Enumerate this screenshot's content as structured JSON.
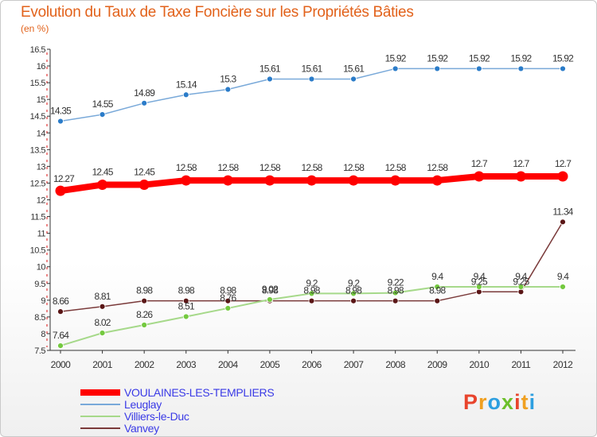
{
  "header": {
    "title": "Evolution du Taux de Taxe Foncière sur les Propriétés Bâties",
    "unit": "(en %)"
  },
  "logo": {
    "letters": [
      {
        "ch": "P",
        "color": "#e8442c"
      },
      {
        "ch": "r",
        "color": "#f0a020"
      },
      {
        "ch": "o",
        "color": "#2d9fe0"
      },
      {
        "ch": "x",
        "color": "#6cbf2a"
      },
      {
        "ch": "i",
        "color": "#e8442c"
      },
      {
        "ch": "t",
        "color": "#f0a020"
      },
      {
        "ch": "i",
        "color": "#2d9fe0"
      }
    ]
  },
  "chart_data": {
    "type": "line",
    "x": [
      2000,
      2001,
      2002,
      2003,
      2004,
      2005,
      2006,
      2007,
      2008,
      2009,
      2010,
      2011,
      2012
    ],
    "ylim": [
      7.5,
      16.5
    ],
    "yticks": [
      "7.5",
      "8",
      "8.5",
      "9",
      "9.5",
      "10",
      "10.5",
      "11",
      "11.5",
      "12",
      "12.5",
      "13",
      "13.5",
      "14",
      "14.5",
      "15",
      "15.5",
      "16",
      "16.5"
    ],
    "grid": false,
    "legend_position": "bottom-left",
    "series": [
      {
        "name": "VOULAINES-LES-TEMPLIERS",
        "color": "#ff0000",
        "marker": "#ff0000",
        "width": 8,
        "values": [
          12.27,
          12.45,
          12.45,
          12.58,
          12.58,
          12.58,
          12.58,
          12.58,
          12.58,
          12.58,
          12.7,
          12.7,
          12.7
        ],
        "labels": [
          "12.27",
          "12.45",
          "12.45",
          "12.58",
          "12.58",
          "12.58",
          "12.58",
          "12.58",
          "12.58",
          "12.58",
          "12.7",
          "12.7",
          "12.7"
        ]
      },
      {
        "name": "Leuglay",
        "color": "#79a9d9",
        "marker": "#2b7cc9",
        "width": 1.5,
        "values": [
          14.35,
          14.55,
          14.89,
          15.14,
          15.3,
          15.61,
          15.61,
          15.61,
          15.92,
          15.92,
          15.92,
          15.92,
          15.92
        ],
        "labels": [
          "14.35",
          "14.55",
          "14.89",
          "15.14",
          "15.3",
          "15.61",
          "15.61",
          "15.61",
          "15.92",
          "15.92",
          "15.92",
          "15.92",
          "15.92"
        ]
      },
      {
        "name": "Villiers-le-Duc",
        "color": "#a6d98a",
        "marker": "#74c93f",
        "width": 2,
        "values": [
          7.64,
          8.02,
          8.26,
          8.51,
          8.76,
          9.02,
          9.2,
          9.2,
          9.22,
          9.4,
          9.4,
          9.4,
          9.4
        ],
        "labels": [
          "7.64",
          "8.02",
          "8.26",
          "8.51",
          "8.76",
          "9.02",
          "9.2",
          "9.2",
          "9.22",
          "9.4",
          "9.4",
          "9.4",
          "9.4"
        ]
      },
      {
        "name": "Vanvey",
        "color": "#7a3a3a",
        "marker": "#5a1616",
        "width": 1.5,
        "values": [
          8.66,
          8.81,
          8.98,
          8.98,
          8.98,
          8.98,
          8.98,
          8.98,
          8.98,
          8.98,
          9.25,
          9.25,
          11.34
        ],
        "labels": [
          "8.66",
          "8.81",
          "8.98",
          "8.98",
          "8.98",
          "8.98",
          "8.98",
          "8.98",
          "8.98",
          "8.98",
          "9.25",
          "9.25",
          "11.34"
        ]
      }
    ]
  }
}
